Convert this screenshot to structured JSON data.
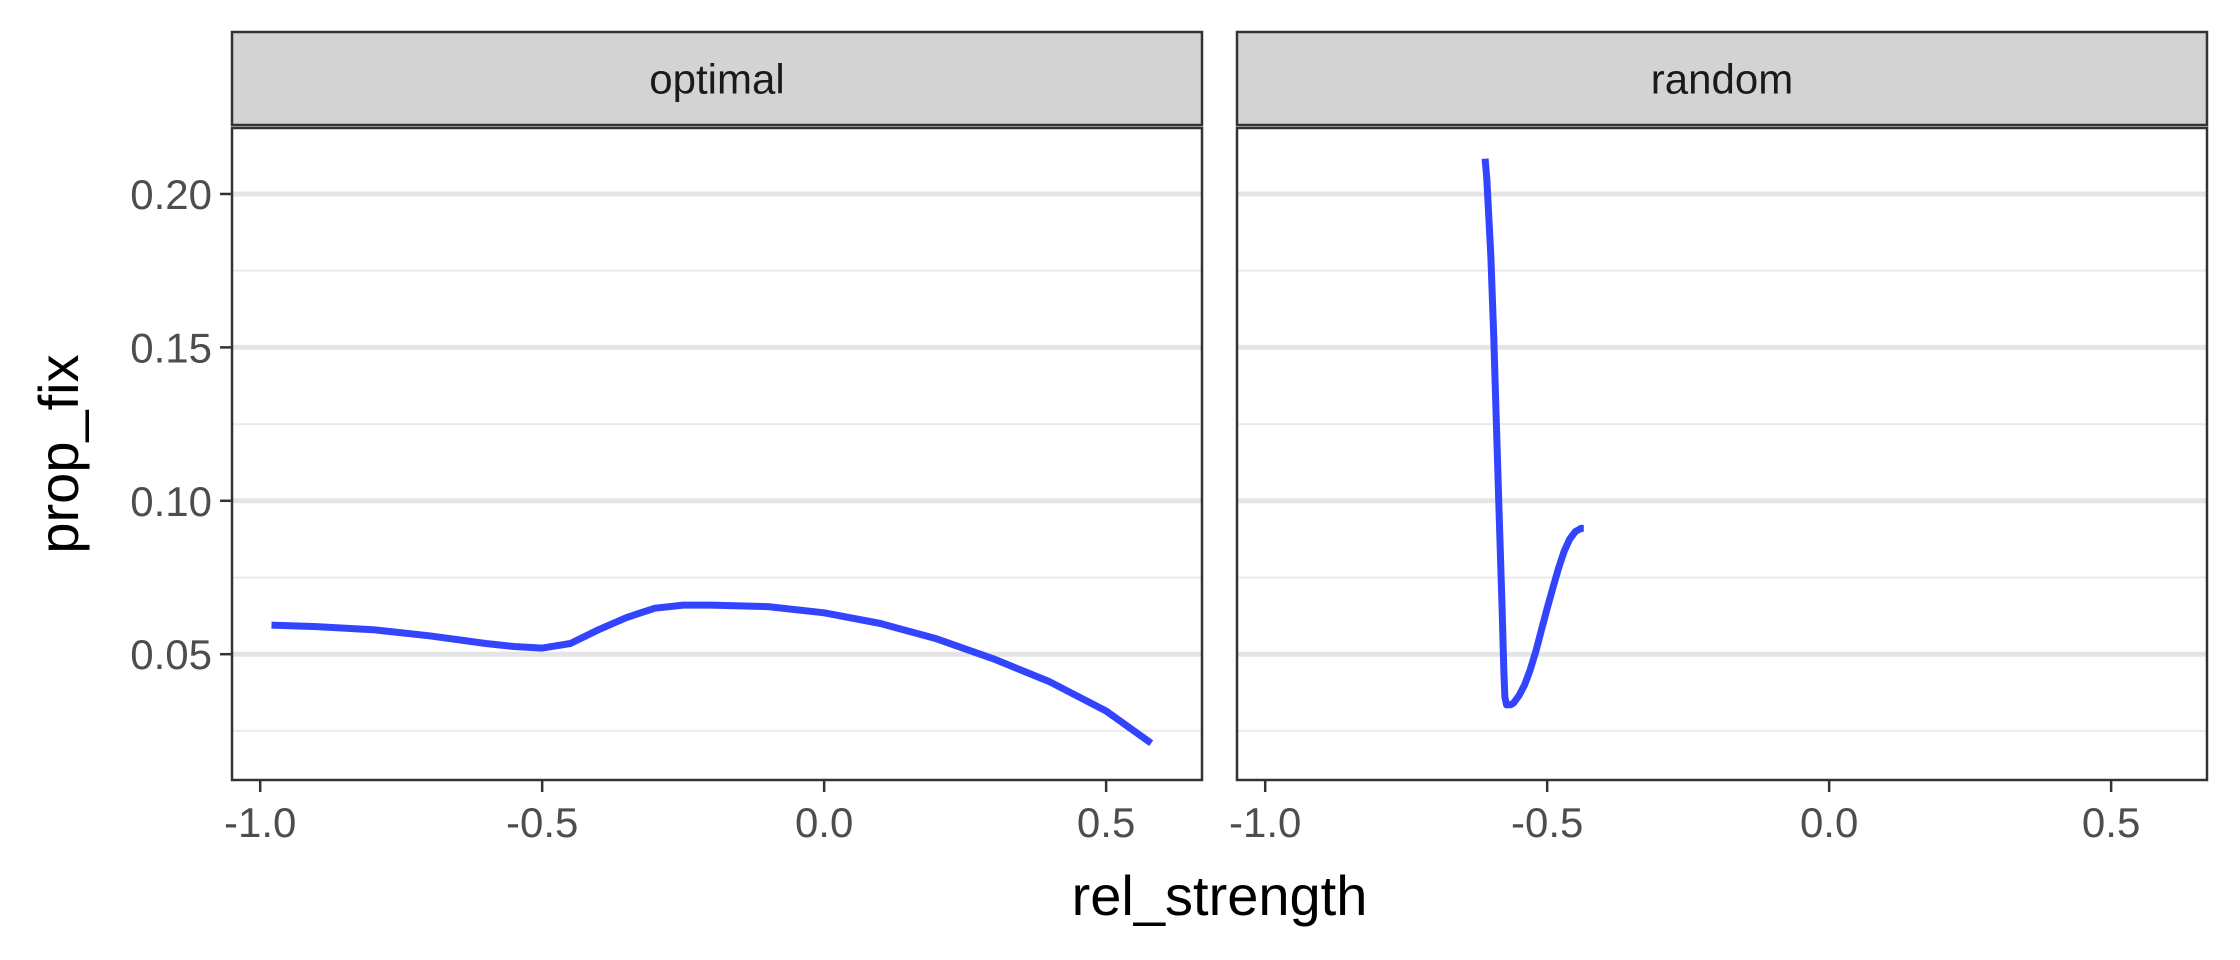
{
  "chart_data": {
    "type": "line",
    "xlabel": "rel_strength",
    "ylabel": "prop_fix",
    "xlim": [
      -1.05,
      0.67
    ],
    "ylim": [
      0.009,
      0.2215
    ],
    "x_ticks": [
      -1.0,
      -0.5,
      0.0,
      0.5
    ],
    "x_tick_labels": [
      "-1.0",
      "-0.5",
      "0.0",
      "0.5"
    ],
    "y_ticks": [
      0.05,
      0.1,
      0.15,
      0.2
    ],
    "y_tick_labels": [
      "0.05",
      "0.10",
      "0.15",
      "0.20"
    ],
    "y_minor_ticks": [
      0.025,
      0.075,
      0.125,
      0.175
    ],
    "grid": true,
    "line_color": "#3344ff",
    "panels": [
      {
        "strip": "optimal",
        "series": [
          {
            "x": [
              -0.98,
              -0.9,
              -0.8,
              -0.7,
              -0.6,
              -0.55,
              -0.5,
              -0.45,
              -0.4,
              -0.35,
              -0.3,
              -0.25,
              -0.2,
              -0.1,
              0.0,
              0.1,
              0.2,
              0.3,
              0.4,
              0.5,
              0.58
            ],
            "y": [
              0.0595,
              0.059,
              0.058,
              0.056,
              0.0535,
              0.0525,
              0.052,
              0.0535,
              0.058,
              0.062,
              0.065,
              0.066,
              0.066,
              0.0655,
              0.0635,
              0.06,
              0.055,
              0.0485,
              0.041,
              0.0315,
              0.021
            ]
          }
        ]
      },
      {
        "strip": "random",
        "series": [
          {
            "x": [
              -0.61,
              -0.607,
              -0.6,
              -0.595,
              -0.59,
              -0.585,
              -0.58,
              -0.577,
              -0.575,
              -0.572,
              -0.57,
              -0.565,
              -0.56,
              -0.55,
              -0.54,
              -0.53,
              -0.52,
              -0.51,
              -0.5,
              -0.49,
              -0.48,
              -0.47,
              -0.46,
              -0.45,
              -0.44,
              -0.435
            ],
            "y": [
              0.2115,
              0.205,
              0.18,
              0.155,
              0.125,
              0.095,
              0.065,
              0.045,
              0.036,
              0.0335,
              0.0335,
              0.0335,
              0.034,
              0.0365,
              0.04,
              0.045,
              0.051,
              0.058,
              0.065,
              0.0715,
              0.078,
              0.0835,
              0.0875,
              0.09,
              0.091,
              0.091
            ]
          }
        ]
      }
    ]
  }
}
